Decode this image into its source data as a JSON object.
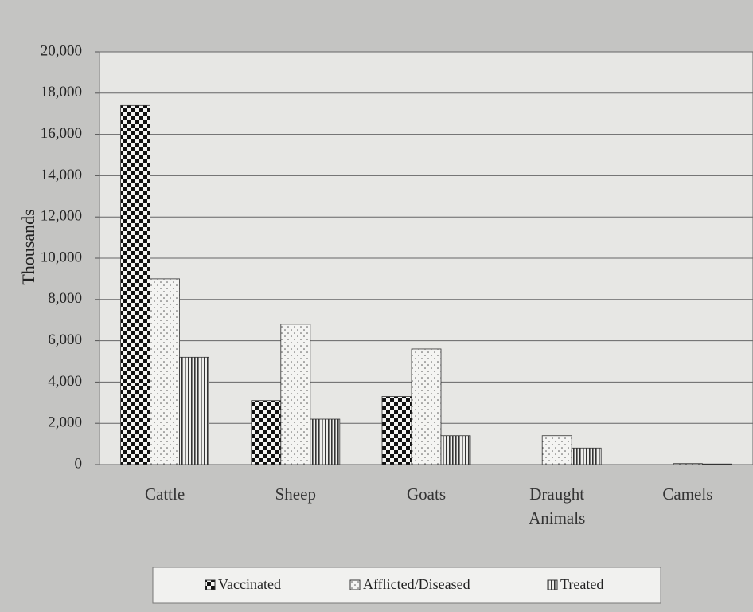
{
  "chart_data": {
    "type": "bar",
    "y_label": "Thousands",
    "categories": [
      "Cattle",
      "Sheep",
      "Goats",
      "Draught Animals",
      "Camels"
    ],
    "series": [
      {
        "name": "Vaccinated",
        "color": "#111111",
        "values": [
          17400,
          3100,
          3300,
          0,
          0
        ]
      },
      {
        "name": "Afflicted/Diseased",
        "color": "#f4f4f2",
        "values": [
          9000,
          6800,
          5600,
          1400,
          50
        ]
      },
      {
        "name": "Treated",
        "color": "#333333",
        "values": [
          5200,
          2200,
          1400,
          800,
          30
        ]
      }
    ],
    "ylim": [
      0,
      20000
    ],
    "yticks": [
      0,
      {
        "value": 2000,
        "label": "2,000"
      },
      {
        "value": 4000,
        "label": "4,000"
      },
      {
        "value": 6000,
        "label": "6,000"
      },
      {
        "value": 8000,
        "label": "8,000"
      },
      {
        "value": 10000,
        "label": "10,000"
      },
      {
        "value": 12000,
        "label": "12,000"
      },
      {
        "value": 14000,
        "label": "14,000"
      },
      {
        "value": 16000,
        "label": "16,000"
      },
      {
        "value": 18000,
        "label": "18,000"
      },
      {
        "value": 20000,
        "label": "20,000"
      }
    ],
    "grid": true,
    "legend": "bottom"
  }
}
